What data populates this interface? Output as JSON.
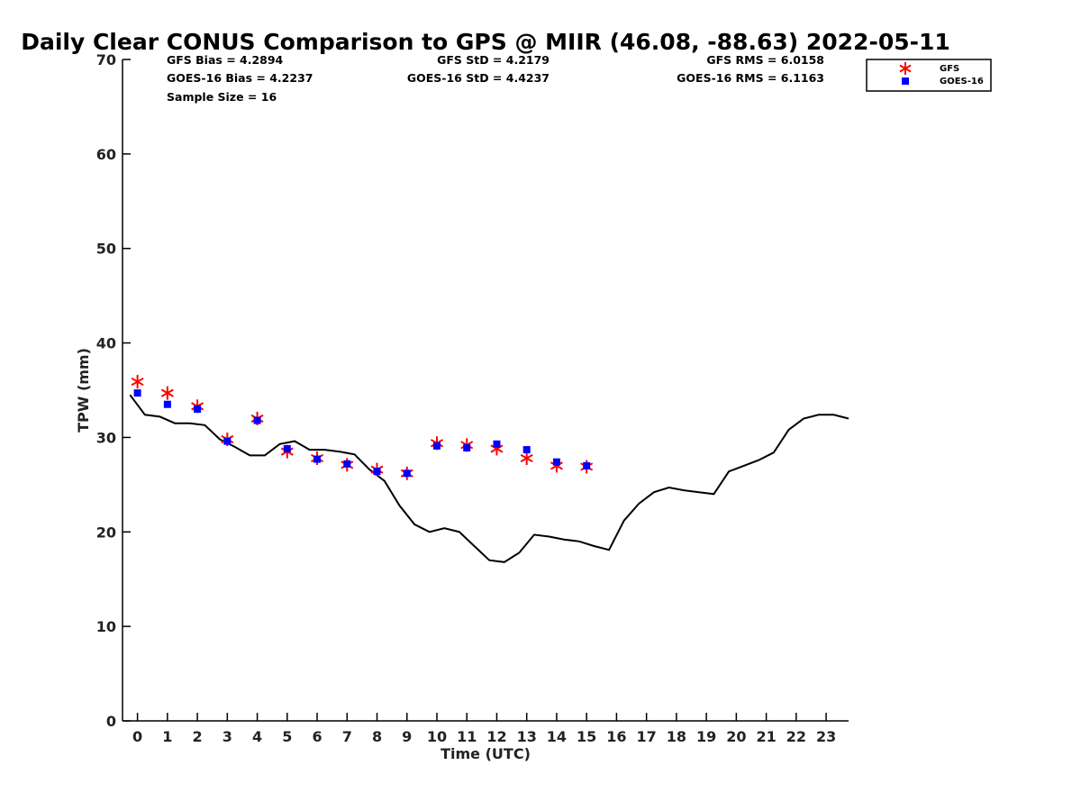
{
  "chart_data": {
    "type": "scatter",
    "title": "Daily Clear CONUS Comparison to GPS @ MIIR (46.08, -88.63) 2022-05-11",
    "xlabel": "Time (UTC)",
    "ylabel": "TPW (mm)",
    "xlim": [
      -0.5,
      23.75
    ],
    "ylim": [
      0,
      70
    ],
    "xticks": [
      "0",
      "1",
      "2",
      "3",
      "4",
      "5",
      "6",
      "7",
      "8",
      "9",
      "10",
      "11",
      "12",
      "13",
      "14",
      "15",
      "16",
      "17",
      "18",
      "19",
      "20",
      "21",
      "22",
      "23"
    ],
    "yticks": [
      "0",
      "10",
      "20",
      "30",
      "40",
      "50",
      "60",
      "70"
    ],
    "stats": {
      "gfs_bias": "GFS Bias = 4.2894",
      "goes_bias": "GOES-16 Bias = 4.2237",
      "sample_size": "Sample Size = 16",
      "gfs_std": "GFS StD = 4.2179",
      "goes_std": "GOES-16 StD = 4.4237",
      "gfs_rms": "GFS RMS = 6.0158",
      "goes_rms": "GOES-16 RMS = 6.1163"
    },
    "legend": {
      "position": "top-right",
      "entries": [
        {
          "label": "GFS",
          "marker": "asterisk",
          "color": "#ff0000"
        },
        {
          "label": "GOES-16",
          "marker": "square",
          "color": "#0000ff"
        }
      ]
    },
    "series": [
      {
        "name": "GPS",
        "type": "line",
        "color": "#000000",
        "x": [
          -0.25,
          0.25,
          0.75,
          1.25,
          1.75,
          2.25,
          2.75,
          3.25,
          3.75,
          4.25,
          4.75,
          5.25,
          5.75,
          6.25,
          6.75,
          7.25,
          7.75,
          8.25,
          8.75,
          9.25,
          9.75,
          10.25,
          10.75,
          11.25,
          11.75,
          12.25,
          12.75,
          13.25,
          13.75,
          14.25,
          14.75,
          15.25,
          15.75,
          16.25,
          16.75,
          17.25,
          17.75,
          18.25,
          18.75,
          19.25,
          19.75,
          20.25,
          20.75,
          21.25,
          21.75,
          22.25,
          22.75,
          23.25,
          23.75
        ],
        "values": [
          34.5,
          32.4,
          32.2,
          31.5,
          31.5,
          31.3,
          29.8,
          29.0,
          28.1,
          28.1,
          29.3,
          29.6,
          28.7,
          28.7,
          28.5,
          28.2,
          26.6,
          25.4,
          22.8,
          20.8,
          20.0,
          20.4,
          20.0,
          18.5,
          17.0,
          16.8,
          17.8,
          19.7,
          19.5,
          19.2,
          19.0,
          18.5,
          18.1,
          21.2,
          23.0,
          24.2,
          24.7,
          24.4,
          24.2,
          24.0,
          26.4,
          27.0,
          27.6,
          28.4,
          30.8,
          32.0,
          32.4,
          32.4,
          32.0
        ]
      },
      {
        "name": "GFS",
        "type": "scatter",
        "marker": "asterisk",
        "color": "#ff0000",
        "x": [
          0,
          1,
          2,
          3,
          4,
          5,
          6,
          7,
          8,
          9,
          10,
          11,
          12,
          13,
          14,
          15
        ],
        "values": [
          35.9,
          34.7,
          33.3,
          29.8,
          32.0,
          28.5,
          27.8,
          27.1,
          26.6,
          26.2,
          29.4,
          29.2,
          28.8,
          27.8,
          27.0,
          26.9
        ]
      },
      {
        "name": "GOES-16",
        "type": "scatter",
        "marker": "square",
        "color": "#0000ff",
        "x": [
          0,
          1,
          2,
          3,
          4,
          5,
          6,
          7,
          8,
          9,
          10,
          11,
          12,
          13,
          14,
          15
        ],
        "values": [
          34.7,
          33.5,
          33.0,
          29.6,
          31.8,
          28.8,
          27.7,
          27.2,
          26.4,
          26.2,
          29.1,
          28.9,
          29.3,
          28.7,
          27.4,
          27.0
        ]
      }
    ]
  }
}
